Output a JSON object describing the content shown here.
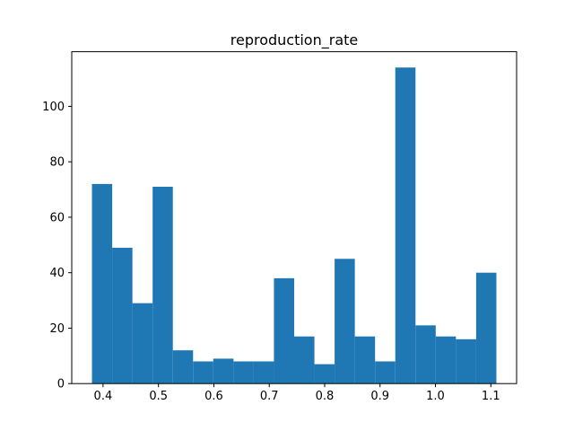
{
  "chart_data": {
    "type": "bar",
    "subtype": "histogram",
    "title": "reproduction_rate",
    "xlabel": "",
    "ylabel": "",
    "bin_edges": [
      0.38,
      0.4165,
      0.453,
      0.4895,
      0.526,
      0.5625,
      0.599,
      0.6355,
      0.672,
      0.7085,
      0.745,
      0.7815,
      0.818,
      0.8545,
      0.891,
      0.9275,
      0.964,
      1.0005,
      1.037,
      1.0735,
      1.11
    ],
    "values": [
      72,
      49,
      29,
      71,
      12,
      8,
      9,
      8,
      8,
      38,
      17,
      7,
      45,
      17,
      8,
      114,
      21,
      17,
      16,
      40
    ],
    "xlim": [
      0.3435,
      1.1465
    ],
    "ylim": [
      0,
      119.7
    ],
    "xticks": [
      0.4,
      0.5,
      0.6,
      0.7,
      0.8,
      0.9,
      1.0,
      1.1
    ],
    "xtick_labels": [
      "0.4",
      "0.5",
      "0.6",
      "0.7",
      "0.8",
      "0.9",
      "1.0",
      "1.1"
    ],
    "yticks": [
      0,
      20,
      40,
      60,
      80,
      100
    ],
    "ytick_labels": [
      "0",
      "20",
      "40",
      "60",
      "80",
      "100"
    ],
    "bar_color": "#1f77b4",
    "grid": false,
    "legend": "none"
  }
}
